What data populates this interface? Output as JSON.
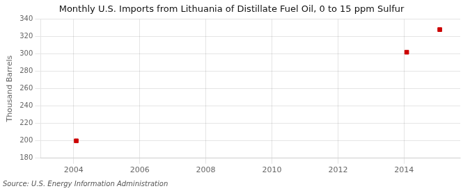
{
  "chart_data": {
    "type": "scatter",
    "title": "Monthly U.S. Imports from Lithuania of Distillate Fuel Oil, 0 to 15 ppm Sulfur",
    "ylabel": "Thousand Barrels",
    "source": "Source: U.S. Energy Information Administration",
    "x": [
      2004.08,
      2014.08,
      2015.08
    ],
    "values": [
      200,
      302,
      328
    ],
    "color": "#cc0000",
    "marker": "square",
    "xlim": [
      2003.0,
      2015.7
    ],
    "xticks": [
      2004,
      2006,
      2008,
      2010,
      2012,
      2014
    ],
    "ylim": [
      180,
      340
    ],
    "yticks": [
      180,
      200,
      220,
      240,
      260,
      280,
      300,
      320,
      340
    ],
    "grid": true
  }
}
